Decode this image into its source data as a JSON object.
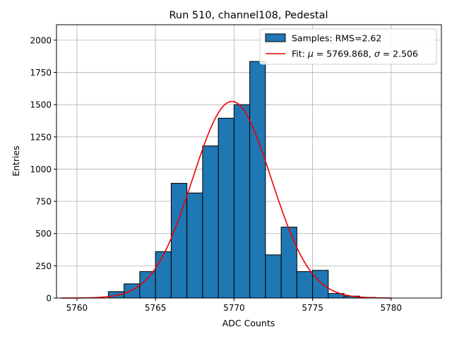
{
  "chart_data": {
    "type": "bar",
    "title": "Run 510, channel108, Pedestal",
    "xlabel": "ADC Counts",
    "ylabel": "Entries",
    "xlim": [
      5758.7,
      5783.2
    ],
    "ylim": [
      0,
      2120
    ],
    "xticks": [
      5760,
      5765,
      5770,
      5775,
      5780
    ],
    "yticks": [
      0,
      250,
      500,
      750,
      1000,
      1250,
      1500,
      1750,
      2000
    ],
    "grid": true,
    "legend_position": "top-right",
    "histogram": {
      "name": "Samples: RMS=2.62",
      "color": "#1f77b4",
      "edgecolor": "#000000",
      "bin_width": 1,
      "bin_left_edges": [
        5762,
        5763,
        5764,
        5765,
        5766,
        5767,
        5768,
        5769,
        5770,
        5771,
        5772,
        5773,
        5774,
        5775,
        5776,
        5777,
        5778
      ],
      "counts": [
        50,
        110,
        205,
        360,
        890,
        815,
        1180,
        1395,
        1500,
        1835,
        335,
        550,
        205,
        215,
        35,
        15,
        5
      ]
    },
    "fit": {
      "name_prefix": "Fit: ",
      "mu_symbol": "μ",
      "equals_mu": " = 5769.868, ",
      "sigma_symbol": "σ",
      "equals_sigma": " = 2.506",
      "mu": 5769.868,
      "sigma": 2.506,
      "amplitude": 1525,
      "x_range": [
        5759,
        5780
      ],
      "color": "#ee0000"
    }
  }
}
